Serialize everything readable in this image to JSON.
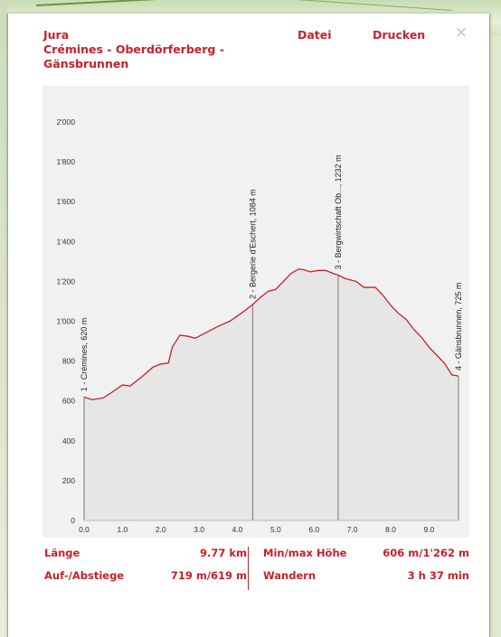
{
  "dialog": {
    "title_lines": [
      "Jura",
      "Crémines - Oberdörferberg -",
      "Gänsbrunnen"
    ],
    "menu": {
      "file": "Datei",
      "print": "Drucken"
    },
    "close_symbol": "×"
  },
  "colors": {
    "accent": "#c8202b",
    "chart_bg": "#f1f1f1",
    "profile_fill": "#e6e6e6"
  },
  "stats": {
    "length_label": "Länge",
    "length_value": "9.77 km",
    "ascent_label": "Auf-/Abstiege",
    "ascent_value": "719 m/619 m",
    "minmax_label": "Min/max Höhe",
    "minmax_value": "606 m/1'262 m",
    "hike_label": "Wandern",
    "hike_value": "3 h 37 min"
  },
  "chart_data": {
    "type": "area",
    "xlim": [
      0,
      9.77
    ],
    "ylim": [
      0,
      2100
    ],
    "x_ticks": [
      0,
      1,
      2,
      3,
      4,
      5,
      6,
      7,
      8,
      9
    ],
    "x_tick_labels": [
      "0.0",
      "1.0",
      "2.0",
      "3.0",
      "4.0",
      "5.0",
      "6.0",
      "7.0",
      "8.0",
      "9.0"
    ],
    "y_ticks": [
      0,
      200,
      400,
      600,
      800,
      1000,
      1200,
      1400,
      1600,
      1800,
      2000
    ],
    "y_tick_labels": [
      "0",
      "200",
      "400",
      "600",
      "800",
      "1'000",
      "1'200",
      "1'400",
      "1'600",
      "1'800",
      "2'000"
    ],
    "series": [
      {
        "x": [
          0,
          0.2,
          0.5,
          0.7,
          1.0,
          1.2,
          1.5,
          1.8,
          2.0,
          2.2,
          2.3,
          2.5,
          2.7,
          2.9,
          3.2,
          3.5,
          3.8,
          4.1,
          4.4,
          4.6,
          4.8,
          5.0,
          5.2,
          5.4,
          5.6,
          5.75,
          5.9,
          6.1,
          6.3,
          6.5,
          6.63,
          6.8,
          7.1,
          7.3,
          7.6,
          7.8,
          8.0,
          8.2,
          8.4,
          8.6,
          8.8,
          9.0,
          9.2,
          9.4,
          9.6,
          9.77
        ],
        "y": [
          620,
          606,
          615,
          640,
          680,
          675,
          720,
          770,
          785,
          790,
          870,
          930,
          925,
          915,
          945,
          975,
          1000,
          1040,
          1084,
          1120,
          1150,
          1160,
          1200,
          1240,
          1262,
          1258,
          1248,
          1255,
          1255,
          1240,
          1232,
          1215,
          1200,
          1170,
          1170,
          1130,
          1080,
          1040,
          1010,
          960,
          920,
          870,
          830,
          790,
          730,
          725
        ]
      }
    ],
    "waypoints": [
      {
        "x": 0,
        "label": "1 - Crémines, 620 m"
      },
      {
        "x": 4.4,
        "label": "2 - Bergerie d'Eschert, 1084 m"
      },
      {
        "x": 6.63,
        "label": "3 - Bergwirtschaft Ob..., 1232 m"
      },
      {
        "x": 9.77,
        "label": "4 - Gänsbrunnen, 725 m"
      }
    ],
    "grid": false
  }
}
